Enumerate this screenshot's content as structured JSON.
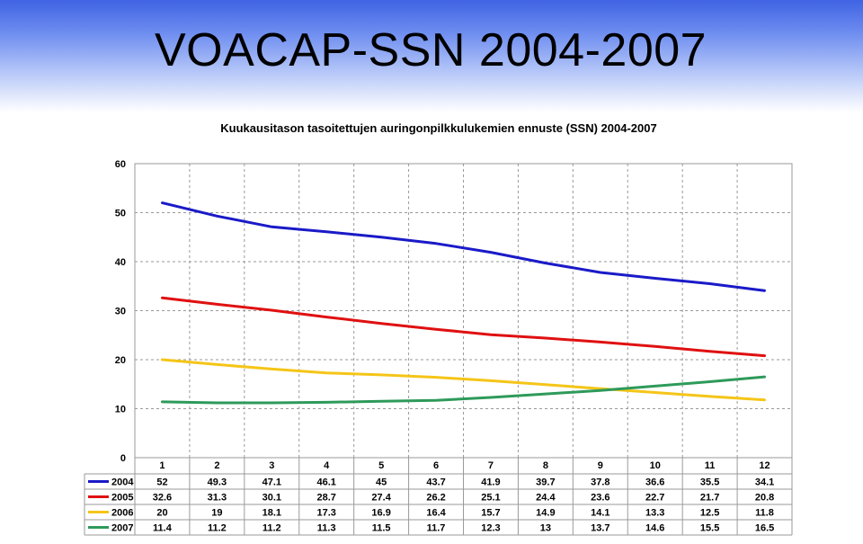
{
  "slide": {
    "title": "VOACAP-SSN 2004-2007"
  },
  "chart_data": {
    "type": "line",
    "title": "Kuukausitason tasoitettujen auringonpilkkulukemien ennuste (SSN) 2004-2007",
    "xlabel": "",
    "ylabel": "",
    "categories": [
      "1",
      "2",
      "3",
      "4",
      "5",
      "6",
      "7",
      "8",
      "9",
      "10",
      "11",
      "12"
    ],
    "ylim": [
      0,
      60
    ],
    "yticks": [
      0,
      10,
      20,
      30,
      40,
      50,
      60
    ],
    "grid": true,
    "legend_placement": "data-table",
    "series": [
      {
        "name": "2004",
        "color": "#1a1ac8",
        "values": [
          52,
          49.3,
          47.1,
          46.1,
          45,
          43.7,
          41.9,
          39.7,
          37.8,
          36.6,
          35.5,
          34.1
        ]
      },
      {
        "name": "2005",
        "color": "#e01010",
        "values": [
          32.6,
          31.3,
          30.1,
          28.7,
          27.4,
          26.2,
          25.1,
          24.4,
          23.6,
          22.7,
          21.7,
          20.8
        ]
      },
      {
        "name": "2006",
        "color": "#f5c518",
        "values": [
          20,
          19,
          18.1,
          17.3,
          16.9,
          16.4,
          15.7,
          14.9,
          14.1,
          13.3,
          12.5,
          11.8
        ]
      },
      {
        "name": "2007",
        "color": "#2e9a5a",
        "values": [
          11.4,
          11.2,
          11.2,
          11.3,
          11.5,
          11.7,
          12.3,
          13,
          13.7,
          14.6,
          15.5,
          16.5
        ]
      }
    ]
  }
}
